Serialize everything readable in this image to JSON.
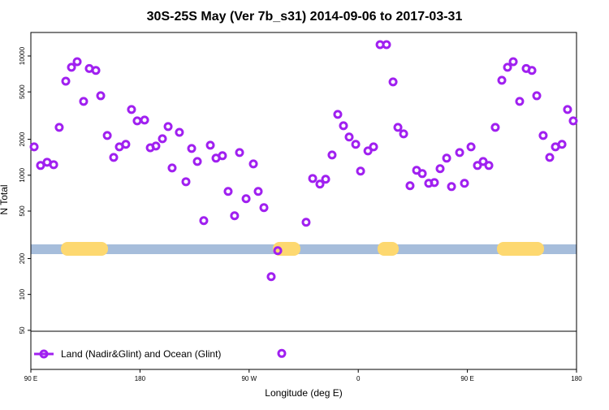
{
  "chart_data": {
    "type": "scatter",
    "title": "30S-25S May (Ver 7b_s31)   2014-09-06 to 2017-03-31",
    "xlabel": "Longitude (deg E)",
    "ylabel": "N Total",
    "xlim": [
      90,
      540
    ],
    "xticks": [
      {
        "value": 90,
        "label": "90 E"
      },
      180,
      {
        "value": 270,
        "label": "90 W"
      },
      {
        "value": 360,
        "label": "0"
      },
      {
        "value": 450,
        "label": "90 E"
      },
      {
        "value": 540,
        "label": "180"
      }
    ],
    "ylim": [
      23.5,
      15750
    ],
    "ylog": true,
    "yticks": [
      50,
      100,
      200,
      500,
      1000,
      2000,
      5000,
      10000
    ],
    "series": [
      {
        "name": "Land (Nadir&Glint) and Ocean (Glint)",
        "color": "#a020f0",
        "x": [
          92.7,
          98,
          103.4,
          108.8,
          113.4,
          118.8,
          123.5,
          128.2,
          133.5,
          138.2,
          143.6,
          147.6,
          153,
          158.3,
          163,
          168.3,
          173,
          177.7,
          183.8,
          188.5,
          193.1,
          198.5,
          203.2,
          206.5,
          212.5,
          217.9,
          222.6,
          227.3,
          232.6,
          238,
          242.7,
          248,
          252.7,
          258,
          262.1,
          267.5,
          273.5,
          277.5,
          282.2,
          288.2,
          293.6,
          296.9,
          317,
          322.4,
          328.4,
          333.1,
          338.4,
          343.1,
          347.8,
          352.5,
          357.9,
          361.9,
          368,
          372.6,
          378,
          383.3,
          388.7,
          392.7,
          397.4,
          402.7,
          408.1,
          412.8,
          418.1,
          422.8,
          427.5,
          432.9,
          436.9,
          443.6,
          447.6,
          453,
          458.3,
          463,
          467.7,
          473,
          478.4,
          483.1,
          487.8,
          493.1,
          498.5,
          503.2,
          507.2,
          512.5,
          517.9,
          522.6,
          528,
          532.6,
          537.3
        ],
        "values": [
          1730,
          1207,
          1285,
          1226,
          2518,
          6150,
          8040,
          8960,
          4160,
          7850,
          7570,
          4640,
          2155,
          1410,
          1730,
          1815,
          3560,
          2855,
          2900,
          1700,
          1757,
          2023,
          2560,
          1150,
          2290,
          882,
          1677,
          1305,
          416,
          1785,
          1390,
          1457,
          731,
          457,
          1550,
          635,
          1245,
          731,
          535,
          141,
          233,
          32,
          403,
          939,
          842,
          925,
          1479,
          3240,
          2600,
          2090,
          1815,
          1082,
          1600,
          1730,
          12450,
          12450,
          6060,
          2518,
          2222,
          816,
          1099,
          1032,
          855,
          868,
          1134,
          1390,
          803,
          1550,
          855,
          1730,
          1207,
          1305,
          1207,
          2518,
          6260,
          8040,
          8960,
          4160,
          7850,
          7570,
          4640,
          2155,
          1410,
          1730,
          1815,
          3560,
          2855
        ]
      }
    ]
  }
}
